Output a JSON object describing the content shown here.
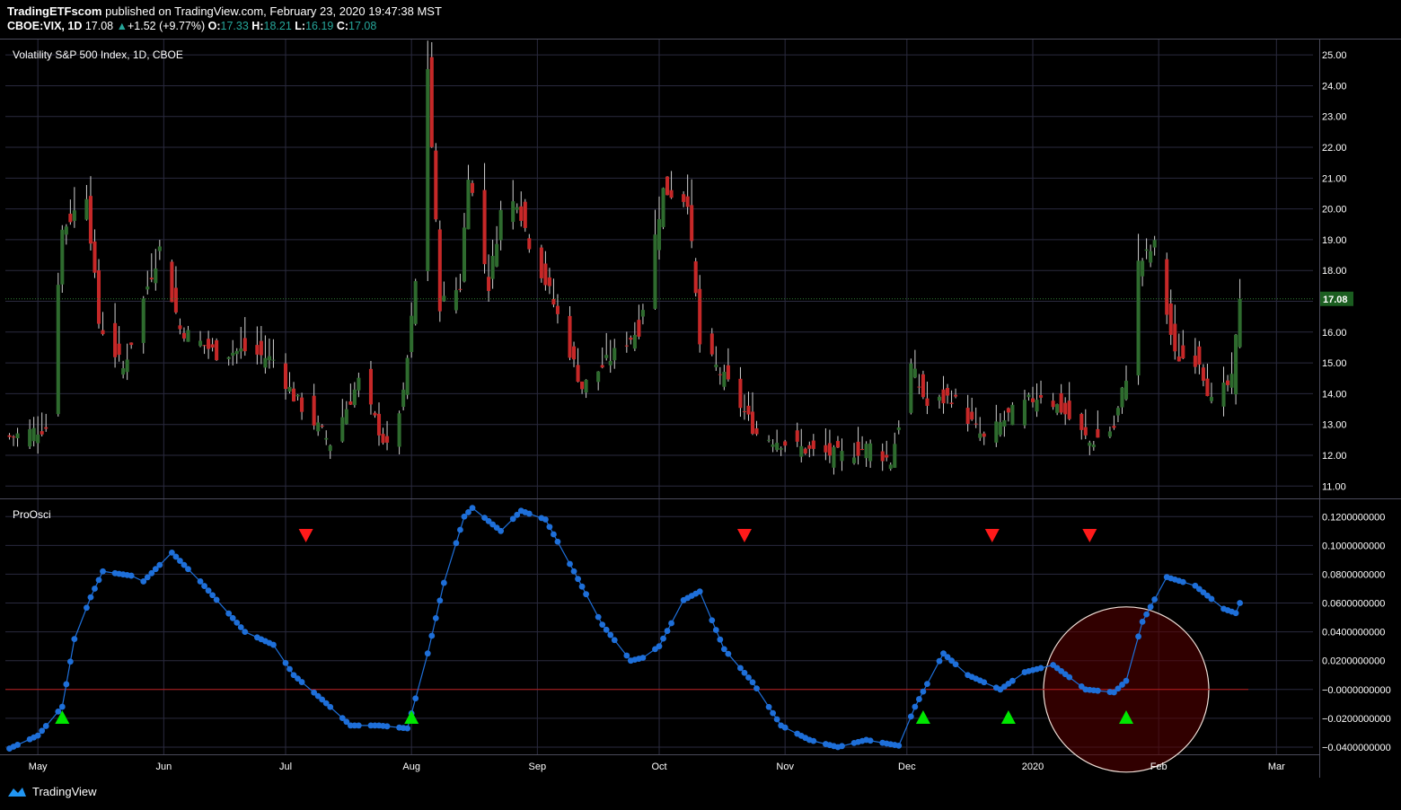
{
  "header": {
    "publisher": "TradingETFscom",
    "published_text": " published on TradingView.com, February 23, 2020 19:47:38 MST",
    "symbol": "CBOE:VIX, 1D",
    "last": "17.08",
    "change": "+1.52 (+9.77%)",
    "o_label": "O:",
    "o": "17.33",
    "h_label": "H:",
    "h": "18.21",
    "l_label": "L:",
    "l": "16.19",
    "c_label": "C:",
    "c": "17.08"
  },
  "footer": {
    "brand": "TradingView"
  },
  "colors": {
    "up": "#2e6b2e",
    "down": "#c62828",
    "wick": "#d0d0d0",
    "osc": "#1e6fd9",
    "zero_line": "#b71c1c",
    "buy": "#00e600",
    "sell": "#ff1a1a",
    "grid": "#2a2a3e",
    "current_price_bg": "#1b5e20"
  },
  "chart_data": [
    {
      "type": "candlestick",
      "title": "Volatility S&P 500 Index, 1D, CBOE",
      "current_price": 17.08,
      "current_price_label": "17.08",
      "y_ticks": [
        "11.00",
        "12.00",
        "13.00",
        "14.00",
        "15.00",
        "16.00",
        "17.00",
        "18.00",
        "19.00",
        "20.00",
        "21.00",
        "22.00",
        "23.00",
        "24.00",
        "25.00"
      ],
      "y_range": [
        10.6,
        25.5
      ],
      "x_range": [
        "2019-04-23",
        "2020-03-10"
      ],
      "x_ticks": [
        {
          "date": "2019-05-01",
          "label": "May"
        },
        {
          "date": "2019-06-01",
          "label": "Jun"
        },
        {
          "date": "2019-07-01",
          "label": "Jul"
        },
        {
          "date": "2019-08-01",
          "label": "Aug"
        },
        {
          "date": "2019-09-01",
          "label": "Sep"
        },
        {
          "date": "2019-10-01",
          "label": "Oct"
        },
        {
          "date": "2019-11-01",
          "label": "Nov"
        },
        {
          "date": "2019-12-01",
          "label": "Dec"
        },
        {
          "date": "2020-01-01",
          "label": "2020"
        },
        {
          "date": "2020-02-01",
          "label": "Feb"
        },
        {
          "date": "2020-03-01",
          "label": "Mar"
        }
      ],
      "close_path": [
        {
          "date": "2019-04-24",
          "close": 12.6
        },
        {
          "date": "2019-05-03",
          "close": 12.9
        },
        {
          "date": "2019-05-07",
          "close": 19.3
        },
        {
          "date": "2019-05-13",
          "close": 20.5
        },
        {
          "date": "2019-05-16",
          "close": 16.3
        },
        {
          "date": "2019-05-22",
          "close": 14.8
        },
        {
          "date": "2019-05-28",
          "close": 17.5
        },
        {
          "date": "2019-05-31",
          "close": 18.7
        },
        {
          "date": "2019-06-05",
          "close": 16.1
        },
        {
          "date": "2019-06-14",
          "close": 15.3
        },
        {
          "date": "2019-06-21",
          "close": 15.4
        },
        {
          "date": "2019-06-28",
          "close": 15.1
        },
        {
          "date": "2019-07-03",
          "close": 13.9
        },
        {
          "date": "2019-07-12",
          "close": 12.4
        },
        {
          "date": "2019-07-19",
          "close": 14.4
        },
        {
          "date": "2019-07-26",
          "close": 12.2
        },
        {
          "date": "2019-07-30",
          "close": 13.9
        },
        {
          "date": "2019-08-02",
          "close": 17.6
        },
        {
          "date": "2019-08-05",
          "close": 24.6
        },
        {
          "date": "2019-08-08",
          "close": 16.9
        },
        {
          "date": "2019-08-13",
          "close": 17.5
        },
        {
          "date": "2019-08-15",
          "close": 21.2
        },
        {
          "date": "2019-08-20",
          "close": 17.5
        },
        {
          "date": "2019-08-23",
          "close": 19.9
        },
        {
          "date": "2019-08-27",
          "close": 20.3
        },
        {
          "date": "2019-08-30",
          "close": 18.9
        },
        {
          "date": "2019-09-04",
          "close": 17.3
        },
        {
          "date": "2019-09-12",
          "close": 14.2
        },
        {
          "date": "2019-09-20",
          "close": 15.3
        },
        {
          "date": "2019-09-26",
          "close": 16.1
        },
        {
          "date": "2019-10-02",
          "close": 20.6
        },
        {
          "date": "2019-10-08",
          "close": 20.3
        },
        {
          "date": "2019-10-11",
          "close": 15.6
        },
        {
          "date": "2019-10-18",
          "close": 14.3
        },
        {
          "date": "2019-10-25",
          "close": 12.7
        },
        {
          "date": "2019-11-08",
          "close": 12.1
        },
        {
          "date": "2019-11-15",
          "close": 12.0
        },
        {
          "date": "2019-11-22",
          "close": 12.3
        },
        {
          "date": "2019-11-27",
          "close": 11.8
        },
        {
          "date": "2019-12-02",
          "close": 14.9
        },
        {
          "date": "2019-12-06",
          "close": 13.6
        },
        {
          "date": "2019-12-12",
          "close": 13.9
        },
        {
          "date": "2019-12-20",
          "close": 12.5
        },
        {
          "date": "2019-12-27",
          "close": 13.4
        },
        {
          "date": "2020-01-03",
          "close": 14.0
        },
        {
          "date": "2020-01-08",
          "close": 13.5
        },
        {
          "date": "2020-01-15",
          "close": 12.4
        },
        {
          "date": "2020-01-21",
          "close": 12.9
        },
        {
          "date": "2020-01-24",
          "close": 14.6
        },
        {
          "date": "2020-01-27",
          "close": 18.2
        },
        {
          "date": "2020-01-31",
          "close": 18.8
        },
        {
          "date": "2020-02-05",
          "close": 15.2
        },
        {
          "date": "2020-02-11",
          "close": 15.1
        },
        {
          "date": "2020-02-14",
          "close": 13.7
        },
        {
          "date": "2020-02-19",
          "close": 14.4
        },
        {
          "date": "2020-02-21",
          "close": 17.08
        }
      ]
    },
    {
      "type": "line",
      "title": "ProOsci",
      "y_ticks": [
        "0.1200000000",
        "0.1000000000",
        "0.0800000000",
        "0.0600000000",
        "0.0400000000",
        "0.0200000000",
        "−0.0000000000",
        "−0.0200000000",
        "−0.0400000000"
      ],
      "y_range": [
        -0.045,
        0.132
      ],
      "zero_line": 0.0,
      "series": [
        {
          "points": [
            {
              "date": "2019-04-24",
              "value": -0.041
            },
            {
              "date": "2019-05-01",
              "value": -0.032
            },
            {
              "date": "2019-05-07",
              "value": -0.012
            },
            {
              "date": "2019-05-10",
              "value": 0.035
            },
            {
              "date": "2019-05-14",
              "value": 0.064
            },
            {
              "date": "2019-05-17",
              "value": 0.082
            },
            {
              "date": "2019-05-24",
              "value": 0.079
            },
            {
              "date": "2019-05-27",
              "value": 0.075
            },
            {
              "date": "2019-06-03",
              "value": 0.095
            },
            {
              "date": "2019-06-10",
              "value": 0.075
            },
            {
              "date": "2019-06-21",
              "value": 0.04
            },
            {
              "date": "2019-06-28",
              "value": 0.031
            },
            {
              "date": "2019-07-03",
              "value": 0.01
            },
            {
              "date": "2019-07-10",
              "value": -0.007
            },
            {
              "date": "2019-07-17",
              "value": -0.025
            },
            {
              "date": "2019-07-24",
              "value": -0.025
            },
            {
              "date": "2019-07-31",
              "value": -0.027
            },
            {
              "date": "2019-08-05",
              "value": 0.025
            },
            {
              "date": "2019-08-09",
              "value": 0.074
            },
            {
              "date": "2019-08-14",
              "value": 0.12
            },
            {
              "date": "2019-08-16",
              "value": 0.126
            },
            {
              "date": "2019-08-23",
              "value": 0.11
            },
            {
              "date": "2019-08-28",
              "value": 0.124
            },
            {
              "date": "2019-09-03",
              "value": 0.118
            },
            {
              "date": "2019-09-10",
              "value": 0.082
            },
            {
              "date": "2019-09-17",
              "value": 0.045
            },
            {
              "date": "2019-09-24",
              "value": 0.02
            },
            {
              "date": "2019-09-27",
              "value": 0.022
            },
            {
              "date": "2019-10-01",
              "value": 0.03
            },
            {
              "date": "2019-10-07",
              "value": 0.062
            },
            {
              "date": "2019-10-11",
              "value": 0.068
            },
            {
              "date": "2019-10-17",
              "value": 0.028
            },
            {
              "date": "2019-10-24",
              "value": 0.005
            },
            {
              "date": "2019-10-31",
              "value": -0.025
            },
            {
              "date": "2019-11-07",
              "value": -0.035
            },
            {
              "date": "2019-11-14",
              "value": -0.04
            },
            {
              "date": "2019-11-21",
              "value": -0.035
            },
            {
              "date": "2019-11-29",
              "value": -0.039
            },
            {
              "date": "2019-12-03",
              "value": -0.012
            },
            {
              "date": "2019-12-10",
              "value": 0.025
            },
            {
              "date": "2019-12-16",
              "value": 0.01
            },
            {
              "date": "2019-12-24",
              "value": 0.0
            },
            {
              "date": "2019-12-30",
              "value": 0.012
            },
            {
              "date": "2020-01-06",
              "value": 0.017
            },
            {
              "date": "2020-01-14",
              "value": 0.0
            },
            {
              "date": "2020-01-21",
              "value": -0.002
            },
            {
              "date": "2020-01-24",
              "value": 0.006
            },
            {
              "date": "2020-01-28",
              "value": 0.047
            },
            {
              "date": "2020-02-03",
              "value": 0.078
            },
            {
              "date": "2020-02-10",
              "value": 0.072
            },
            {
              "date": "2020-02-17",
              "value": 0.056
            },
            {
              "date": "2020-02-20",
              "value": 0.053
            },
            {
              "date": "2020-02-21",
              "value": 0.06
            }
          ]
        }
      ],
      "buy_signals": [
        "2019-05-07",
        "2019-08-01",
        "2019-12-05",
        "2019-12-26",
        "2020-01-24"
      ],
      "sell_signals": [
        "2019-07-06",
        "2019-10-22",
        "2019-12-22",
        "2020-01-15"
      ],
      "highlight_circle": {
        "center_date": "2020-01-24",
        "center_value": 0.0,
        "color": "#5a0000"
      }
    }
  ]
}
